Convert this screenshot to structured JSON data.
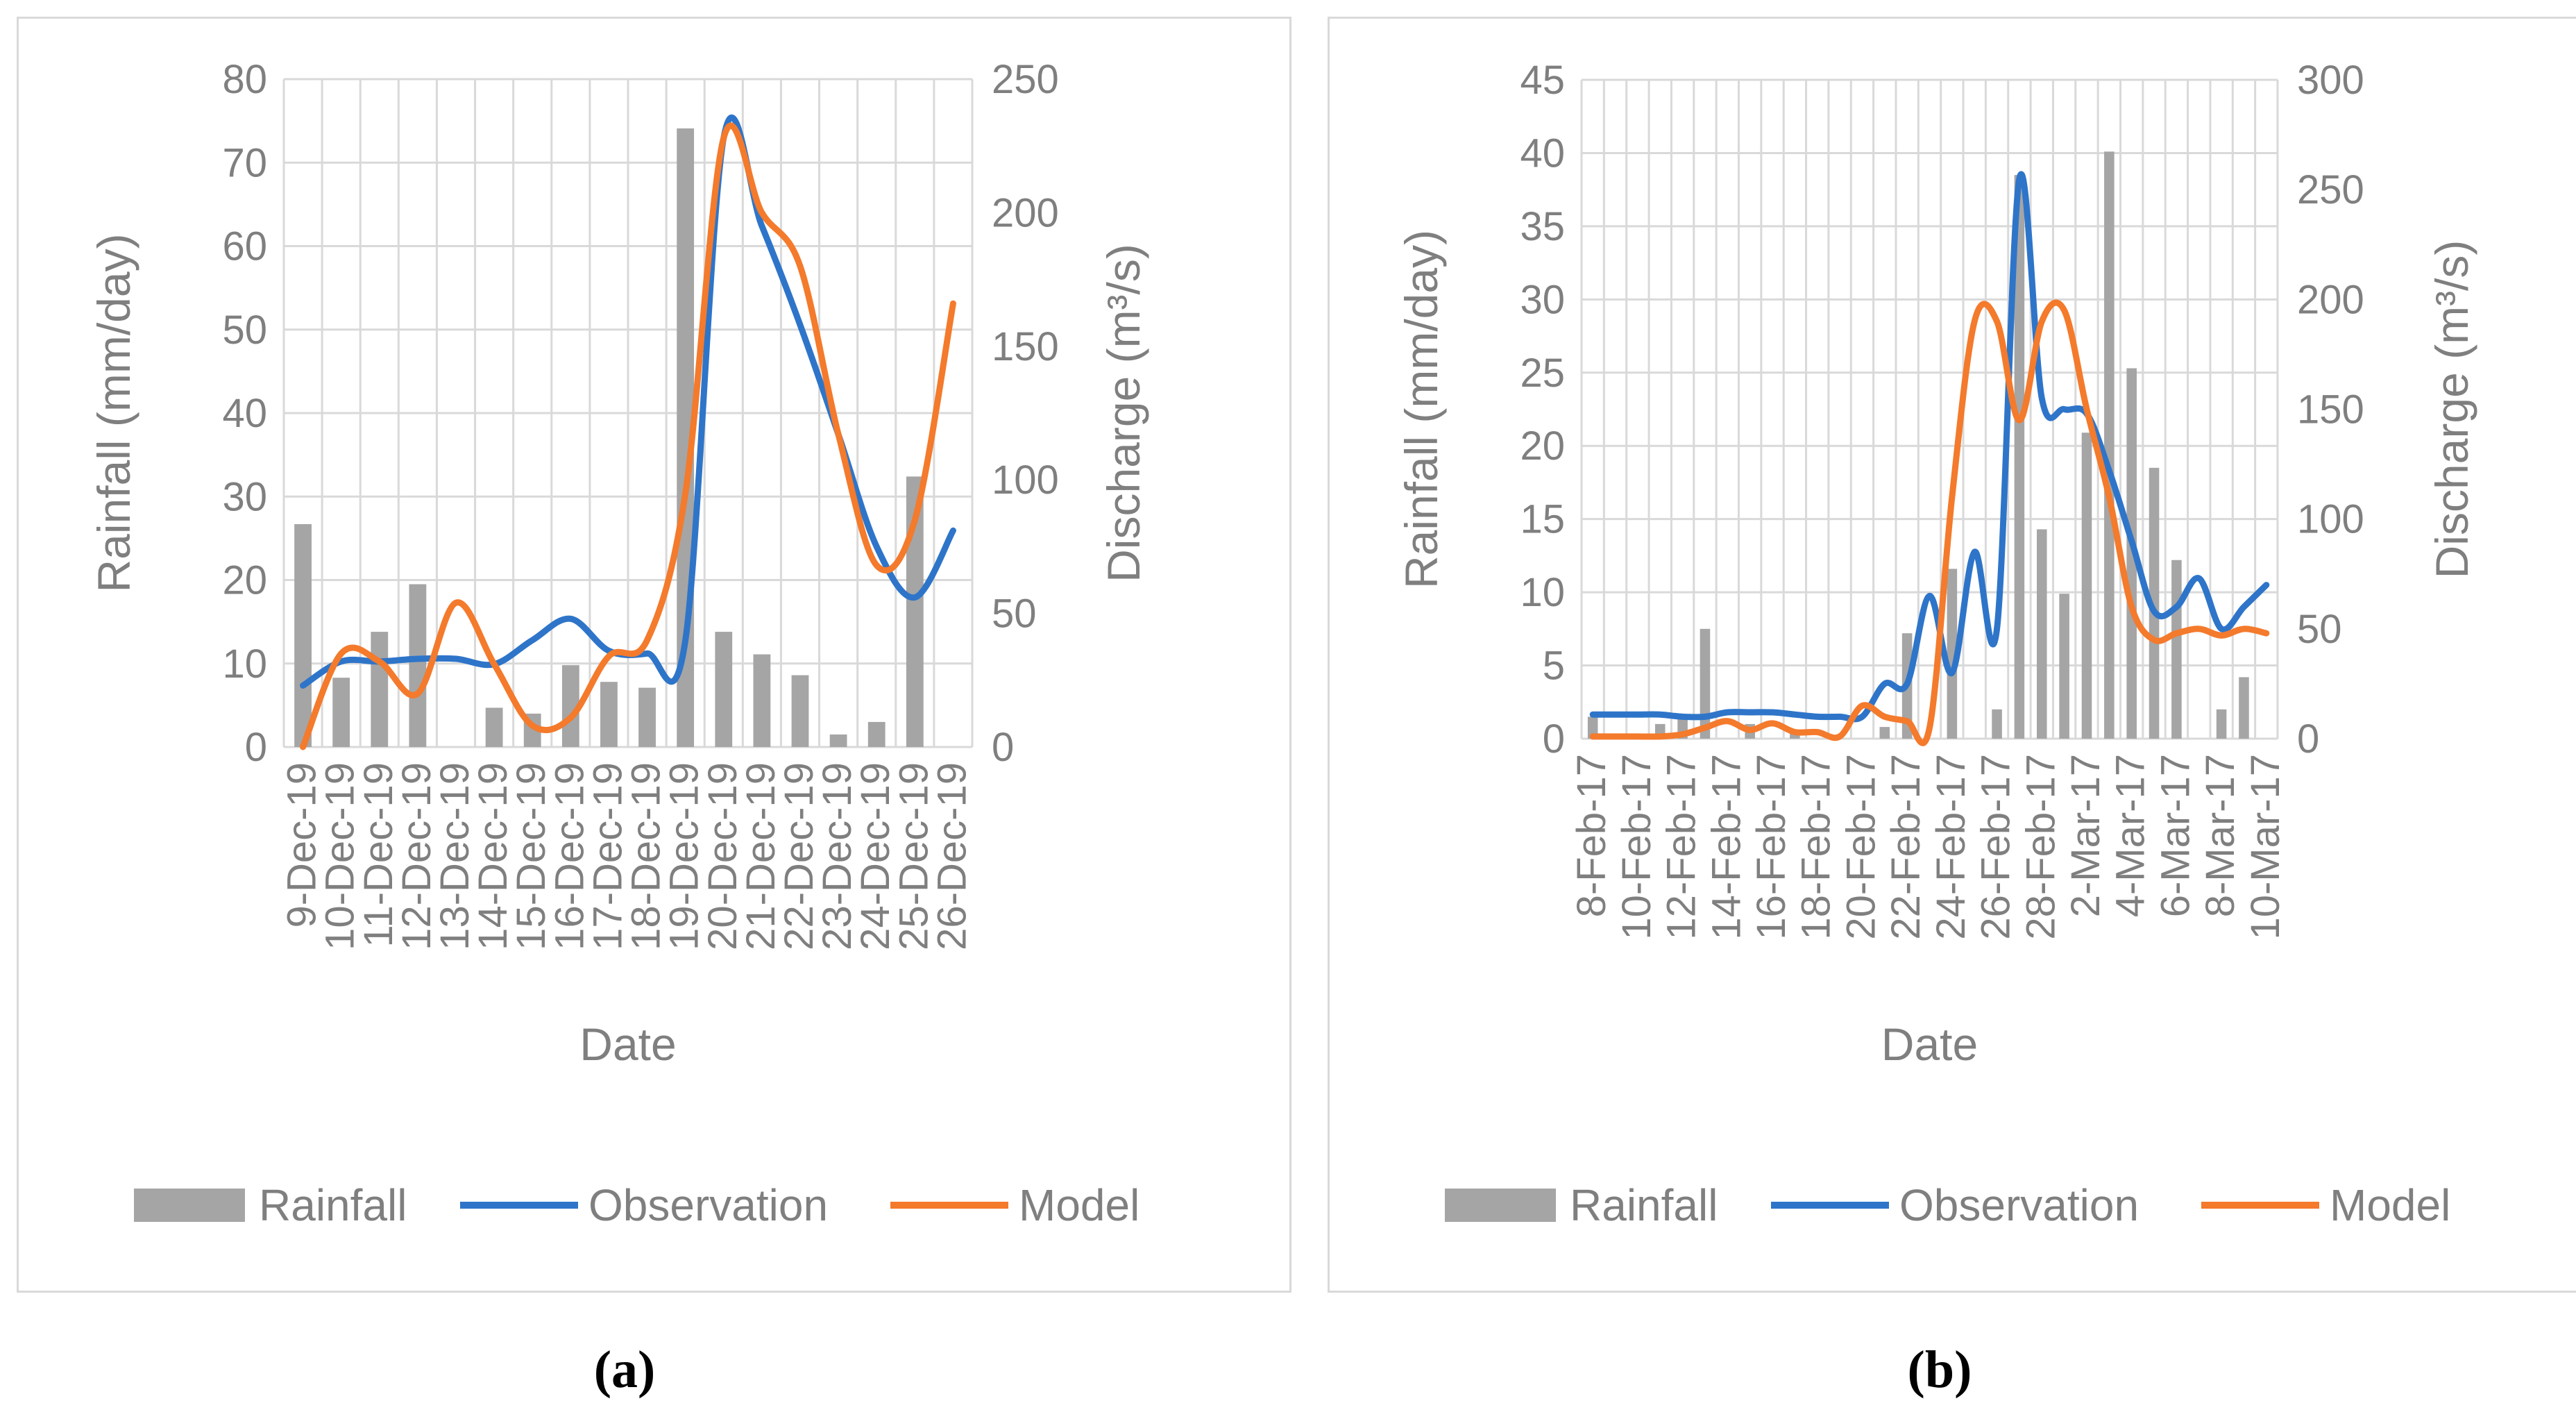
{
  "colors": {
    "rainfall": "#a5a5a5",
    "observation": "#2e75c9",
    "model": "#f47a2c",
    "grid": "#d9d9d9",
    "text": "#7f7f7f"
  },
  "chart_data": [
    {
      "type": "bar+line",
      "panel_label": "a",
      "xlabel": "Date",
      "ylabel_left": "Rainfall (mm/day)",
      "ylabel_right": "Discharge (m³/s)",
      "ylim_left": [
        0,
        80
      ],
      "ylim_right": [
        0,
        250
      ],
      "yticks_left": [
        "0",
        "10",
        "20",
        "30",
        "40",
        "50",
        "60",
        "70",
        "80"
      ],
      "yticks_right": [
        "0",
        "50",
        "100",
        "150",
        "200",
        "250"
      ],
      "categories": [
        "9-Dec-19",
        "10-Dec-19",
        "11-Dec-19",
        "12-Dec-19",
        "13-Dec-19",
        "14-Dec-19",
        "15-Dec-19",
        "16-Dec-19",
        "17-Dec-19",
        "18-Dec-19",
        "19-Dec-19",
        "20-Dec-19",
        "21-Dec-19",
        "22-Dec-19",
        "23-Dec-19",
        "24-Dec-19",
        "25-Dec-19",
        "26-Dec-19"
      ],
      "series": [
        {
          "name": "Rainfall",
          "axis": "left",
          "kind": "bar",
          "values": [
            26.7,
            8.3,
            13.8,
            19.5,
            0,
            4.7,
            4.0,
            9.8,
            7.8,
            7.1,
            74.1,
            13.8,
            11.1,
            8.6,
            1.5,
            3.0,
            32.4,
            0
          ]
        },
        {
          "name": "Observation",
          "axis": "right",
          "kind": "line",
          "values": [
            23,
            32,
            32,
            33,
            33,
            31,
            40,
            48,
            36,
            35,
            40,
            228,
            195,
            158,
            117,
            75,
            56,
            81
          ]
        },
        {
          "name": "Model",
          "axis": "right",
          "kind": "line",
          "values": [
            0,
            35,
            32,
            20,
            54,
            31,
            8,
            11,
            34,
            40,
            95,
            228,
            200,
            180,
            117,
            68,
            85,
            166
          ]
        }
      ],
      "legend": [
        "Rainfall",
        "Observation",
        "Model"
      ],
      "legend_position": "bottom"
    },
    {
      "type": "bar+line",
      "panel_label": "b",
      "xlabel": "Date",
      "ylabel_left": "Rainfall (mm/day)",
      "ylabel_right": "Discharge (m³/s)",
      "ylim_left": [
        0,
        45
      ],
      "ylim_right": [
        0,
        300
      ],
      "yticks_left": [
        "0",
        "5",
        "10",
        "15",
        "20",
        "25",
        "30",
        "35",
        "40",
        "45"
      ],
      "yticks_right": [
        "0",
        "50",
        "100",
        "150",
        "200",
        "250",
        "300"
      ],
      "categories": [
        "8-Feb-17",
        "9-Feb-17",
        "10-Feb-17",
        "11-Feb-17",
        "12-Feb-17",
        "13-Feb-17",
        "14-Feb-17",
        "15-Feb-17",
        "16-Feb-17",
        "17-Feb-17",
        "18-Feb-17",
        "19-Feb-17",
        "20-Feb-17",
        "21-Feb-17",
        "22-Feb-17",
        "23-Feb-17",
        "24-Feb-17",
        "25-Feb-17",
        "26-Feb-17",
        "27-Feb-17",
        "28-Feb-17",
        "1-Mar-17",
        "2-Mar-17",
        "3-Mar-17",
        "4-Mar-17",
        "5-Mar-17",
        "6-Mar-17",
        "7-Mar-17",
        "8-Mar-17",
        "9-Mar-17",
        "10-Mar-17"
      ],
      "visible_tick_labels": [
        "8-Feb-17",
        "10-Feb-17",
        "12-Feb-17",
        "14-Feb-17",
        "16-Feb-17",
        "18-Feb-17",
        "20-Feb-17",
        "22-Feb-17",
        "24-Feb-17",
        "26-Feb-17",
        "28-Feb-17",
        "2-Mar-17",
        "4-Mar-17",
        "6-Mar-17",
        "8-Mar-17",
        "10-Mar-17"
      ],
      "series": [
        {
          "name": "Rainfall",
          "axis": "left",
          "kind": "bar",
          "values": [
            1.5,
            0,
            0,
            1.0,
            1.5,
            7.5,
            0,
            1.0,
            0,
            0.5,
            0,
            0,
            0,
            0.8,
            7.2,
            0,
            11.6,
            0,
            2.0,
            38.5,
            14.3,
            9.9,
            20.9,
            40.1,
            25.3,
            18.5,
            12.2,
            0,
            2.0,
            4.2,
            0
          ]
        },
        {
          "name": "Observation",
          "axis": "right",
          "kind": "line",
          "values": [
            11,
            11,
            11,
            11,
            10,
            10,
            12,
            12,
            12,
            11,
            10,
            10,
            10,
            25,
            25,
            65,
            30,
            85,
            50,
            255,
            155,
            150,
            148,
            122,
            90,
            58,
            60,
            73,
            50,
            60,
            70
          ]
        },
        {
          "name": "Model",
          "axis": "right",
          "kind": "line",
          "values": [
            1,
            1,
            1,
            1,
            2,
            5,
            8,
            4,
            7,
            3,
            3,
            1,
            15,
            10,
            8,
            5,
            110,
            190,
            190,
            145,
            190,
            195,
            150,
            110,
            60,
            45,
            48,
            50,
            47,
            50,
            48
          ]
        }
      ],
      "legend": [
        "Rainfall",
        "Observation",
        "Model"
      ],
      "legend_position": "bottom"
    }
  ],
  "captions": {
    "a": "(a)",
    "b": "(b)"
  }
}
